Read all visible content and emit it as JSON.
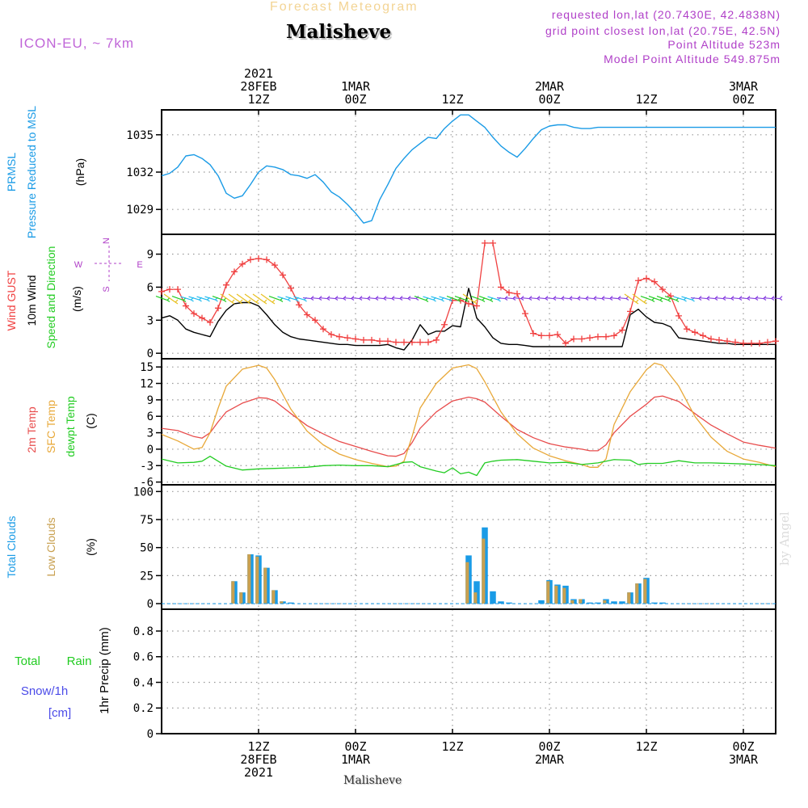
{
  "header": {
    "subtitle": "Forecast Meteogram",
    "title": "Malisheve",
    "model": "ICON-EU, ~ 7km",
    "requested": "requested lon,lat (20.7430E, 42.4838N)",
    "gridpoint": "grid point closest lon,lat (20.75E, 42.5N)",
    "altitude": "Point Altitude 523m",
    "model_altitude": "Model Point Altitude 549.875m"
  },
  "footer": {
    "location": "Malisheve",
    "signature": "by Angel"
  },
  "colors": {
    "pressure": "#1a9be6",
    "gust": "#f04040",
    "wind": "#000000",
    "wind_dir": "#22cc22",
    "temp2m": "#e84c4c",
    "sfc_temp": "#e8a838",
    "dewpt": "#22cc22",
    "total_clouds": "#1a9be6",
    "low_clouds": "#c8a050",
    "rain": "#22cc22",
    "snow": "#4a4ae8",
    "axis_label_purple": "#b040c8"
  },
  "time_axis": {
    "top_labels": [
      {
        "x": 12,
        "lines": [
          "2021",
          "28FEB",
          "12Z"
        ]
      },
      {
        "x": 24,
        "lines": [
          "1MAR",
          "00Z"
        ]
      },
      {
        "x": 36,
        "lines": [
          "12Z"
        ]
      },
      {
        "x": 48,
        "lines": [
          "2MAR",
          "00Z"
        ]
      },
      {
        "x": 60,
        "lines": [
          "12Z"
        ]
      },
      {
        "x": 72,
        "lines": [
          "3MAR",
          "00Z"
        ]
      }
    ],
    "bottom_labels": [
      {
        "x": 12,
        "lines": [
          "12Z",
          "28FEB",
          "2021"
        ]
      },
      {
        "x": 24,
        "lines": [
          "00Z",
          "1MAR"
        ]
      },
      {
        "x": 36,
        "lines": [
          "12Z"
        ]
      },
      {
        "x": 48,
        "lines": [
          "00Z",
          "2MAR"
        ]
      },
      {
        "x": 60,
        "lines": [
          "12Z"
        ]
      },
      {
        "x": 72,
        "lines": [
          "00Z",
          "3MAR"
        ]
      }
    ]
  },
  "chart_data": [
    {
      "type": "line",
      "name": "pressure",
      "labels": {
        "main": "PRMSL",
        "sub": "Pressure Reduced to MSL",
        "unit": "(hPa)"
      },
      "ylim": [
        1027,
        1037
      ],
      "yticks": [
        1029,
        1032,
        1035
      ],
      "series": [
        {
          "name": "PRMSL",
          "color": "#1a9be6",
          "x": [
            0,
            1,
            2,
            3,
            4,
            5,
            6,
            7,
            8,
            9,
            10,
            11,
            12,
            13,
            14,
            15,
            16,
            17,
            18,
            19,
            20,
            21,
            22,
            23,
            24,
            25,
            26,
            27,
            28,
            29,
            30,
            31,
            32,
            33,
            34,
            35,
            36,
            37,
            38,
            39,
            40,
            41,
            42,
            43,
            44,
            45,
            46,
            47,
            48,
            49,
            50,
            51,
            52,
            53,
            54,
            55,
            56,
            57,
            58,
            59,
            60,
            61,
            62,
            63,
            64,
            65,
            66,
            67,
            68,
            69,
            70,
            71,
            72,
            73,
            74,
            75,
            76
          ],
          "y": [
            1031.7,
            1031.9,
            1032.4,
            1033.3,
            1033.4,
            1033.1,
            1032.6,
            1031.7,
            1030.3,
            1029.9,
            1030.1,
            1031.0,
            1032.0,
            1032.5,
            1032.4,
            1032.2,
            1031.8,
            1031.7,
            1031.5,
            1031.8,
            1031.2,
            1030.4,
            1030.0,
            1029.4,
            1028.7,
            1027.9,
            1028.1,
            1029.8,
            1031.0,
            1032.3,
            1033.1,
            1033.8,
            1034.3,
            1034.8,
            1034.7,
            1035.5,
            1036.1,
            1036.6,
            1036.6,
            1036.1,
            1035.6,
            1034.8,
            1034.1,
            1033.6,
            1033.2,
            1033.9,
            1034.7,
            1035.4,
            1035.7,
            1035.8,
            1035.8,
            1035.6,
            1035.5,
            1035.5,
            1035.6,
            1035.6,
            1035.6,
            1035.6,
            1035.6,
            1035.6,
            1035.6,
            1035.6,
            1035.6,
            1035.6,
            1035.6,
            1035.6,
            1035.6,
            1035.6,
            1035.6,
            1035.6,
            1035.6,
            1035.6,
            1035.6,
            1035.6,
            1035.6,
            1035.6,
            1035.6
          ]
        }
      ]
    },
    {
      "type": "line",
      "name": "wind",
      "labels": {
        "gust": "Wind GUST",
        "wind": "10m Wind",
        "dir": "Speed and Direction",
        "unit": "(m/s)",
        "compass_n": "N",
        "compass_s": "S",
        "compass_w": "W",
        "compass_e": "E"
      },
      "ylim": [
        -0.5,
        10.8
      ],
      "yticks": [
        0,
        3,
        6,
        9
      ],
      "series": [
        {
          "name": "Wind GUST",
          "color": "#f04040",
          "x": [
            0,
            1,
            2,
            3,
            4,
            5,
            6,
            7,
            8,
            9,
            10,
            11,
            12,
            13,
            14,
            15,
            16,
            17,
            18,
            19,
            20,
            21,
            22,
            23,
            24,
            25,
            26,
            27,
            28,
            29,
            30,
            31,
            32,
            33,
            34,
            35,
            36,
            37,
            38,
            39,
            40,
            41,
            42,
            43,
            44,
            45,
            46,
            47,
            48,
            49,
            50,
            51,
            52,
            53,
            54,
            55,
            56,
            57,
            58,
            59,
            60,
            61,
            62,
            63,
            64,
            65,
            66,
            67,
            68,
            69,
            70,
            71,
            72,
            73,
            74,
            75,
            76
          ],
          "y": [
            5.6,
            5.8,
            5.8,
            4.3,
            3.6,
            3.2,
            2.8,
            4.1,
            6.2,
            7.4,
            8.1,
            8.5,
            8.6,
            8.5,
            8.0,
            7.1,
            5.9,
            4.4,
            3.5,
            3.0,
            2.2,
            1.7,
            1.5,
            1.4,
            1.3,
            1.2,
            1.2,
            1.1,
            1.1,
            1.0,
            1.0,
            1.0,
            1.0,
            1.0,
            1.2,
            2.6,
            4.8,
            4.8,
            4.5,
            4.3,
            10.0,
            10.0,
            6.0,
            5.5,
            5.4,
            3.6,
            1.8,
            1.6,
            1.6,
            1.7,
            0.9,
            1.3,
            1.3,
            1.4,
            1.5,
            1.5,
            1.6,
            2.1,
            3.8,
            6.6,
            6.8,
            6.5,
            5.8,
            5.2,
            3.4,
            2.2,
            1.9,
            1.6,
            1.3,
            1.2,
            1.1,
            1.0,
            0.9,
            0.9,
            0.9,
            1.0,
            1.1
          ]
        },
        {
          "name": "10m Wind",
          "color": "#000000",
          "x": [
            0,
            1,
            2,
            3,
            4,
            5,
            6,
            7,
            8,
            9,
            10,
            11,
            12,
            13,
            14,
            15,
            16,
            17,
            18,
            19,
            20,
            21,
            22,
            23,
            24,
            25,
            26,
            27,
            28,
            29,
            30,
            31,
            32,
            33,
            34,
            35,
            36,
            37,
            38,
            39,
            40,
            41,
            42,
            43,
            44,
            45,
            46,
            47,
            48,
            49,
            50,
            51,
            52,
            53,
            54,
            55,
            56,
            57,
            58,
            59,
            60,
            61,
            62,
            63,
            64,
            65,
            66,
            67,
            68,
            69,
            70,
            71,
            72,
            73,
            74,
            75,
            76
          ],
          "y": [
            3.2,
            3.4,
            3.0,
            2.2,
            1.9,
            1.7,
            1.5,
            2.9,
            3.9,
            4.5,
            4.6,
            4.6,
            4.3,
            3.5,
            2.6,
            1.9,
            1.5,
            1.3,
            1.2,
            1.1,
            1.0,
            0.9,
            0.8,
            0.8,
            0.7,
            0.7,
            0.7,
            0.7,
            0.8,
            0.5,
            0.3,
            1.2,
            2.6,
            1.7,
            2.0,
            2.0,
            2.5,
            2.4,
            5.9,
            3.2,
            2.4,
            1.4,
            0.9,
            0.8,
            0.8,
            0.7,
            0.6,
            0.6,
            0.6,
            0.6,
            0.6,
            0.6,
            0.6,
            0.6,
            0.6,
            0.6,
            0.6,
            0.6,
            3.5,
            4.0,
            3.3,
            2.8,
            2.7,
            2.4,
            1.4,
            1.3,
            1.2,
            1.1,
            1.0,
            0.9,
            0.9,
            0.8,
            0.8,
            0.8,
            0.8,
            0.8,
            0.8
          ]
        }
      ]
    },
    {
      "type": "line",
      "name": "temperature",
      "labels": {
        "t2m": "2m Temp",
        "sfc": "SFC Temp",
        "dew": "dewpt Temp",
        "unit": "(C)"
      },
      "ylim": [
        -6.5,
        16.5
      ],
      "yticks": [
        -6,
        -3,
        0,
        3,
        6,
        9,
        12,
        15
      ],
      "series": [
        {
          "name": "2m Temp",
          "color": "#e84c4c",
          "x": [
            0,
            2,
            4,
            5,
            6,
            7,
            8,
            10,
            12,
            13,
            14,
            16,
            18,
            20,
            22,
            24,
            26,
            28,
            29,
            30,
            31,
            32,
            34,
            36,
            38,
            39,
            40,
            42,
            44,
            46,
            48,
            50,
            52,
            53,
            54,
            55,
            56,
            58,
            60,
            61,
            62,
            64,
            66,
            68,
            70,
            72,
            74,
            76
          ],
          "y": [
            3.8,
            3.4,
            2.3,
            2.0,
            3.0,
            5.0,
            6.8,
            8.4,
            9.4,
            9.3,
            8.8,
            6.5,
            4.3,
            2.8,
            1.4,
            0.5,
            -0.4,
            -1.2,
            -1.3,
            -0.8,
            1.2,
            3.8,
            6.8,
            8.8,
            9.5,
            9.2,
            8.6,
            6.0,
            3.6,
            2.1,
            1.0,
            0.4,
            0.0,
            -0.3,
            -0.3,
            0.8,
            3.0,
            6.0,
            8.2,
            9.5,
            9.7,
            8.7,
            6.5,
            4.4,
            2.8,
            1.3,
            0.7,
            0.2
          ]
        },
        {
          "name": "SFC Temp",
          "color": "#e8a838",
          "x": [
            0,
            2,
            4,
            5,
            6,
            7,
            8,
            10,
            12,
            13,
            14,
            16,
            18,
            20,
            22,
            24,
            26,
            28,
            29,
            30,
            31,
            32,
            34,
            36,
            38,
            39,
            40,
            42,
            44,
            46,
            48,
            50,
            52,
            53,
            54,
            55,
            56,
            58,
            60,
            61,
            62,
            64,
            66,
            68,
            70,
            72,
            74,
            76
          ],
          "y": [
            2.7,
            1.5,
            0.0,
            0.3,
            3.0,
            7.5,
            11.5,
            14.6,
            15.3,
            14.8,
            12.7,
            7.3,
            3.3,
            0.8,
            -0.9,
            -1.9,
            -2.6,
            -3.2,
            -3.1,
            -2.2,
            2.3,
            7.5,
            12.0,
            14.8,
            15.4,
            14.7,
            12.3,
            6.8,
            2.8,
            0.2,
            -1.2,
            -2.1,
            -2.8,
            -3.3,
            -3.3,
            -1.8,
            4.5,
            10.5,
            14.5,
            15.7,
            15.3,
            11.5,
            6.0,
            2.2,
            -0.4,
            -1.8,
            -2.4,
            -3.2
          ]
        },
        {
          "name": "dewpt Temp",
          "color": "#22cc22",
          "x": [
            0,
            2,
            4,
            5,
            6,
            7,
            8,
            10,
            12,
            14,
            16,
            18,
            20,
            22,
            24,
            26,
            28,
            30,
            31,
            32,
            34,
            35,
            36,
            37,
            38,
            39,
            40,
            41,
            42,
            44,
            46,
            48,
            50,
            52,
            54,
            56,
            58,
            59,
            60,
            62,
            64,
            66,
            68,
            70,
            72,
            74,
            76
          ],
          "y": [
            -1.8,
            -2.5,
            -2.4,
            -2.2,
            -1.3,
            -2.2,
            -3.1,
            -3.8,
            -3.6,
            -3.5,
            -3.4,
            -3.3,
            -3.0,
            -2.9,
            -3.0,
            -3.0,
            -3.2,
            -2.4,
            -2.3,
            -3.2,
            -4.0,
            -4.3,
            -3.4,
            -4.5,
            -4.2,
            -4.8,
            -2.5,
            -2.2,
            -2.0,
            -1.9,
            -2.2,
            -2.5,
            -2.4,
            -2.8,
            -2.5,
            -1.9,
            -2.0,
            -2.8,
            -2.6,
            -2.6,
            -2.1,
            -2.5,
            -2.5,
            -2.6,
            -2.7,
            -2.8,
            -3.0
          ]
        }
      ]
    },
    {
      "type": "bar",
      "name": "clouds",
      "labels": {
        "total": "Total Clouds",
        "low": "Low Clouds",
        "unit": "(%)"
      },
      "ylim": [
        -5,
        106
      ],
      "yticks": [
        0,
        25,
        50,
        75,
        100
      ],
      "series": [
        {
          "name": "Total Clouds",
          "color": "#1a9be6",
          "x": [
            9,
            10,
            11,
            12,
            13,
            14,
            15,
            16,
            38,
            39,
            40,
            41,
            42,
            43,
            47,
            48,
            49,
            50,
            51,
            52,
            53,
            54,
            55,
            56,
            57,
            58,
            59,
            60,
            61,
            62
          ],
          "y": [
            20,
            10,
            44,
            43,
            32,
            12,
            2,
            1,
            43,
            20,
            68,
            11,
            2,
            1,
            3,
            21,
            17,
            16,
            4,
            4,
            1,
            1,
            4,
            2,
            2,
            10,
            18,
            23,
            1,
            1
          ]
        },
        {
          "name": "Low Clouds",
          "color": "#c8a050",
          "x": [
            9,
            10,
            11,
            12,
            13,
            14,
            15,
            38,
            39,
            40,
            48,
            49,
            50,
            51,
            52,
            55,
            58,
            59,
            60
          ],
          "y": [
            20,
            10,
            44,
            42,
            32,
            12,
            2,
            37,
            10,
            58,
            20,
            16,
            14,
            3,
            4,
            3,
            10,
            18,
            22
          ]
        }
      ]
    },
    {
      "type": "line",
      "name": "precip",
      "labels": {
        "total": "Total",
        "rain": "Rain",
        "snow": "Snow/1h",
        "snow_unit": "[cm]",
        "precip": "1hr Precip (mm)"
      },
      "ylim": [
        0,
        0.97
      ],
      "yticks": [
        0,
        0.2,
        0.4,
        0.6,
        0.8
      ],
      "series": [
        {
          "name": "1hr Precip",
          "color": "#000000",
          "x": [
            0,
            76
          ],
          "y": [
            0,
            0
          ]
        }
      ]
    }
  ]
}
